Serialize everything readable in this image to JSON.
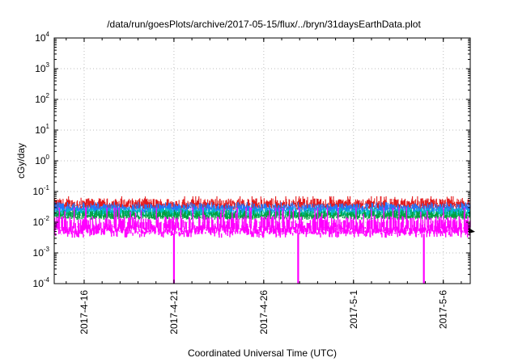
{
  "chart_data": {
    "type": "line",
    "title": "/data/run/goesPlots/archive/2017-05-15/flux/../bryn/31daysEarthData.plot",
    "xlabel": "Coordinated Universal Time (UTC)",
    "ylabel": "cGy/day",
    "scale": {
      "x": "time",
      "y": "log10"
    },
    "grid": true,
    "xlim": [
      "2017-04-14T08:00",
      "2017-05-07T12:00"
    ],
    "ylim": [
      0.0001,
      10000
    ],
    "x_ticks": [
      {
        "value": "2017-04-16",
        "label": "2017-4-16"
      },
      {
        "value": "2017-04-21",
        "label": "2017-4-21"
      },
      {
        "value": "2017-04-26",
        "label": "2017-4-26"
      },
      {
        "value": "2017-05-01",
        "label": "2017-5-1"
      },
      {
        "value": "2017-05-06",
        "label": "2017-5-6"
      }
    ],
    "y_ticks": [
      {
        "value": 0.0001,
        "base": "10",
        "exp": "-4"
      },
      {
        "value": 0.001,
        "base": "10",
        "exp": "-3"
      },
      {
        "value": 0.01,
        "base": "10",
        "exp": "-2"
      },
      {
        "value": 0.1,
        "base": "10",
        "exp": "-1"
      },
      {
        "value": 1,
        "base": "10",
        "exp": "0"
      },
      {
        "value": 10,
        "base": "10",
        "exp": "1"
      },
      {
        "value": 100,
        "base": "10",
        "exp": "2"
      },
      {
        "value": 1000,
        "base": "10",
        "exp": "3"
      },
      {
        "value": 10000,
        "base": "10",
        "exp": "4"
      }
    ],
    "series": [
      {
        "color": "#e41a1c",
        "typical": 0.04,
        "range": [
          0.025,
          0.07
        ]
      },
      {
        "color": "#1f77ff",
        "typical": 0.03,
        "range": [
          0.02,
          0.045
        ]
      },
      {
        "color": "#00c0c0",
        "typical": 0.022,
        "range": [
          0.015,
          0.03
        ]
      },
      {
        "color": "#00a040",
        "typical": 0.018,
        "range": [
          0.012,
          0.025
        ]
      },
      {
        "color": "#ff00ff",
        "typical": 0.007,
        "range": [
          0.004,
          0.03
        ],
        "dropouts": [
          "2017-04-21T00:00",
          "2017-04-27T22:00",
          "2017-05-04T22:00"
        ]
      }
    ],
    "end_marker_color": "#000000"
  }
}
